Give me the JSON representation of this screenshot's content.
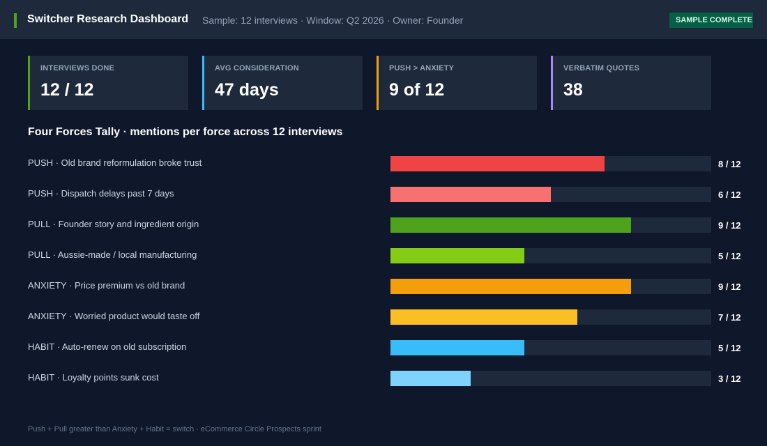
{
  "header": {
    "title": "Switcher Research Dashboard",
    "meta": "Sample: 12 interviews · Window: Q2 2026 · Owner: Founder",
    "badge": "SAMPLE COMPLETE",
    "accent_color": "#4fa31c"
  },
  "kpis": [
    {
      "label": "INTERVIEWS DONE",
      "value": "12 / 12",
      "color": "#4fa31c"
    },
    {
      "label": "AVG CONSIDERATION",
      "value": "47 days",
      "color": "#38bdf8"
    },
    {
      "label": "PUSH > ANXIETY",
      "value": "9 of 12",
      "color": "#f59e0b"
    },
    {
      "label": "VERBATIM QUOTES",
      "value": "38",
      "color": "#a78bfa"
    }
  ],
  "section": {
    "title": "Four Forces Tally · mentions per force across 12 interviews"
  },
  "chart_data": {
    "type": "bar",
    "orientation": "horizontal",
    "title": "Four Forces Tally · mentions per force across 12 interviews",
    "categories": [
      "PUSH · Old brand reformulation broke trust",
      "PUSH · Dispatch delays past 7 days",
      "PULL · Founder story and ingredient origin",
      "PULL · Aussie-made / local manufacturing",
      "ANXIETY · Price premium vs old brand",
      "ANXIETY · Worried product would taste off",
      "HABIT · Auto-renew on old subscription",
      "HABIT · Loyalty points sunk cost"
    ],
    "values": [
      8,
      6,
      9,
      5,
      9,
      7,
      5,
      3
    ],
    "max": 12,
    "labels": [
      "8 / 12",
      "6 / 12",
      "9 / 12",
      "5 / 12",
      "9 / 12",
      "7 / 12",
      "5 / 12",
      "3 / 12"
    ],
    "colors": [
      "#ef4444",
      "#f87171",
      "#4fa31c",
      "#84cc16",
      "#f59e0b",
      "#fbbf24",
      "#38bdf8",
      "#7dd3fc"
    ]
  },
  "footer": {
    "text": "Push + Pull greater than Anxiety + Habit = switch · eCommerce Circle Prospects sprint"
  }
}
